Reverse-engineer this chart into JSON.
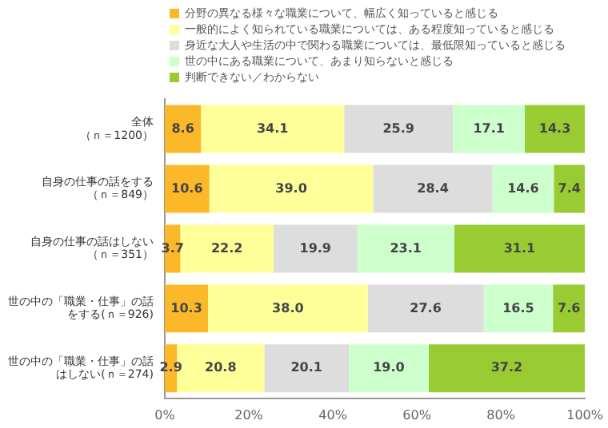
{
  "chart_data": {
    "type": "bar",
    "orientation": "horizontal",
    "stacked": true,
    "categories": [
      "全体（ｎ＝1200）",
      "自身の仕事の話をする（ｎ＝849）",
      "自身の仕事の話はしない（ｎ＝351）",
      "世の中の「職業・仕事」の話をする(ｎ＝926)",
      "世の中の「職業・仕事」の話はしない(ｎ＝274)"
    ],
    "series": [
      {
        "name": "分野の異なる様々な職業について、幅広く知っていると感じる",
        "color": "#fbb829",
        "values": [
          8.6,
          10.6,
          3.7,
          10.3,
          2.9
        ],
        "value_labels": [
          "8.6",
          "10.6",
          "3.7",
          "10.3",
          "2.9"
        ]
      },
      {
        "name": "一般的によく知られている職業については、ある程度知っていると感じる",
        "color": "#ffff99",
        "values": [
          34.1,
          39.0,
          22.2,
          38.0,
          20.8
        ],
        "value_labels": [
          "34.1",
          "39.0",
          "22.2",
          "38.0",
          "20.8"
        ]
      },
      {
        "name": "身近な大人や生活の中で関わる職業については、最低限知っていると感じる",
        "color": "#dddddd",
        "values": [
          25.9,
          28.4,
          19.9,
          27.6,
          20.1
        ],
        "value_labels": [
          "25.9",
          "28.4",
          "19.9",
          "27.6",
          "20.1"
        ]
      },
      {
        "name": "世の中にある職業について、あまり知らないと感じる",
        "color": "#ccffcc",
        "values": [
          17.1,
          14.6,
          23.1,
          16.5,
          19.0
        ],
        "value_labels": [
          "17.1",
          "14.6",
          "23.1",
          "16.5",
          "19.0"
        ]
      },
      {
        "name": "判断できない／わからない",
        "color": "#99cc33",
        "values": [
          14.3,
          7.4,
          31.1,
          7.6,
          37.2
        ],
        "value_labels": [
          "14.3",
          "7.4",
          "31.1",
          "7.6",
          "37.2"
        ]
      }
    ],
    "xlim": [
      0,
      100
    ],
    "xticks": [
      {
        "value": 0,
        "label": "0%"
      },
      {
        "value": 20,
        "label": "20%"
      },
      {
        "value": 40,
        "label": "40%"
      },
      {
        "value": 60,
        "label": "60%"
      },
      {
        "value": 80,
        "label": "80%"
      },
      {
        "value": 100,
        "label": "100%"
      }
    ],
    "legend": "top"
  }
}
